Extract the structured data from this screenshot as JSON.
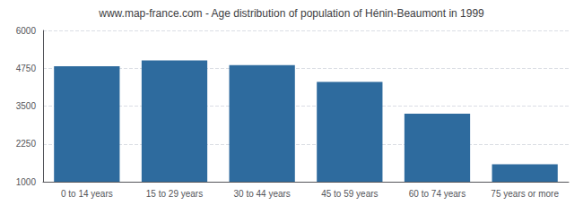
{
  "chart_data": {
    "type": "bar",
    "title": "www.map-france.com - Age distribution of population of Hénin-Beaumont in 1999",
    "categories": [
      "0 to 14 years",
      "15 to 29 years",
      "30 to 44 years",
      "45 to 59 years",
      "60 to 74 years",
      "75 years or more"
    ],
    "values": [
      4820,
      5010,
      4850,
      4300,
      3250,
      1580
    ],
    "color": "#2e6b9e",
    "ylim": [
      1000,
      6000
    ],
    "yticks": [
      1000,
      2250,
      3500,
      4750,
      6000
    ],
    "grid": true
  }
}
